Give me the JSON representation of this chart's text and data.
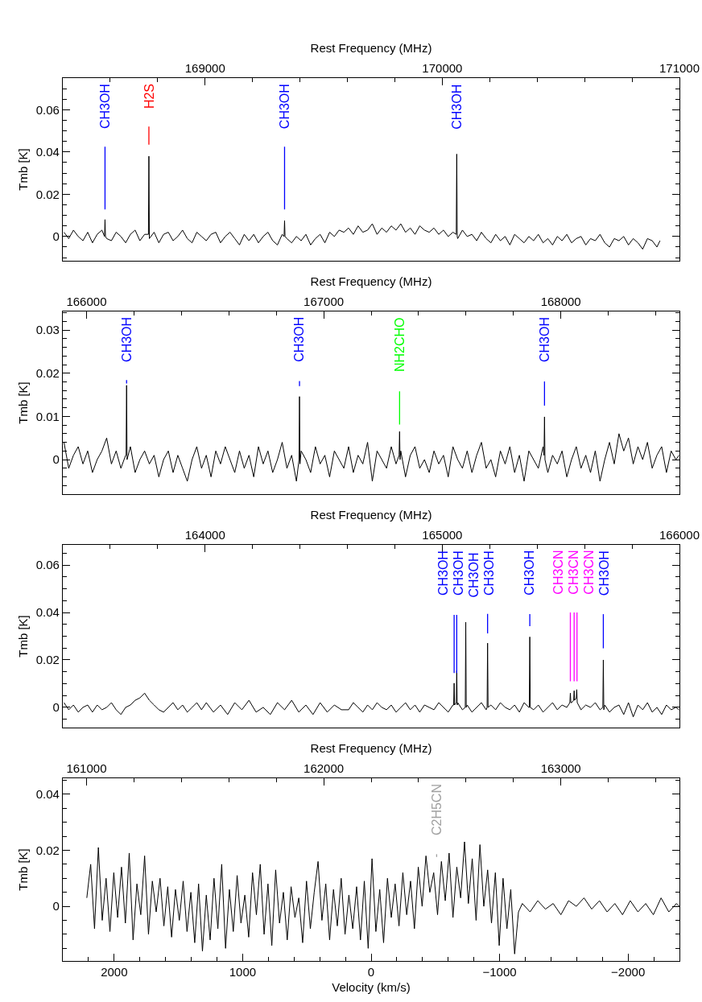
{
  "chart_data": [
    {
      "type": "line",
      "xlabel": "Rest Frequency (MHz)",
      "ylabel": "Tmb [K]",
      "xlim": [
        168400,
        171000
      ],
      "ylim": [
        -0.0115,
        0.075
      ],
      "xticks": [
        169000,
        170000,
        171000,
        {
          "value": 168600,
          "label": null
        },
        {
          "value": 168800,
          "label": null
        },
        {
          "value": 169200,
          "label": null
        },
        {
          "value": 169400,
          "label": null
        },
        {
          "value": 169600,
          "label": null
        },
        {
          "value": 169800,
          "label": null
        },
        {
          "value": 170200,
          "label": null
        },
        {
          "value": 170400,
          "label": null
        },
        {
          "value": 170600,
          "label": null
        },
        {
          "value": 170800,
          "label": null
        }
      ],
      "yticks": [
        0,
        0.02,
        0.04,
        0.06,
        {
          "value": -0.01,
          "label": null
        },
        {
          "value": -0.005,
          "label": null
        },
        {
          "value": 0.005,
          "label": null
        },
        {
          "value": 0.01,
          "label": null
        },
        {
          "value": 0.015,
          "label": null
        },
        {
          "value": 0.025,
          "label": null
        },
        {
          "value": 0.03,
          "label": null
        },
        {
          "value": 0.035,
          "label": null
        },
        {
          "value": 0.045,
          "label": null
        },
        {
          "value": 0.05,
          "label": null
        },
        {
          "value": 0.055,
          "label": null
        },
        {
          "value": 0.065,
          "label": null
        },
        {
          "value": 0.07,
          "label": null
        }
      ],
      "annotations": [
        {
          "text": "CH3OH",
          "x": 170061,
          "y": 0.039
        }
      ],
      "series": [
        {
          "color": "#000000",
          "x": [
            168405,
            168425,
            168445,
            168465,
            168485,
            168505,
            168525,
            168545,
            168565,
            168576,
            168578,
            168580,
            168585,
            168605,
            168625,
            168645,
            168665,
            168685,
            168705,
            168725,
            168745,
            168761,
            168763,
            168765,
            168785,
            168805,
            168825,
            168845,
            168865,
            168885,
            168905,
            168925,
            168945,
            168965,
            168985,
            169005,
            169025,
            169045,
            169065,
            169085,
            169105,
            169125,
            169145,
            169165,
            169185,
            169205,
            169225,
            169245,
            169265,
            169285,
            169305,
            169325,
            169333,
            169335,
            169337,
            169345,
            169365,
            169385,
            169405,
            169425,
            169445,
            169465,
            169485,
            169505,
            169525,
            169545,
            169565,
            169585,
            169605,
            169625,
            169645,
            169665,
            169685,
            169705,
            169725,
            169745,
            169765,
            169785,
            169805,
            169825,
            169845,
            169865,
            169885,
            169905,
            169925,
            169945,
            169965,
            169985,
            170005,
            170025,
            170045,
            170059,
            170061,
            170063,
            170065,
            170085,
            170105,
            170125,
            170145,
            170165,
            170185,
            170205,
            170225,
            170245,
            170265,
            170285,
            170305,
            170325,
            170345,
            170365,
            170385,
            170405,
            170425,
            170445,
            170465,
            170485,
            170505,
            170525,
            170545,
            170565,
            170585,
            170605,
            170625,
            170645,
            170665,
            170685,
            170705,
            170725,
            170745,
            170765,
            170785,
            170805,
            170825,
            170845,
            170865,
            170885,
            170905,
            170918
          ],
          "values": [
            0.002,
            -0.001,
            0.003,
            0,
            -0.002,
            0.002,
            -0.003,
            0.001,
            0.003,
            0,
            0.008,
            0,
            -0.001,
            -0.002,
            0.002,
            0,
            -0.003,
            0.001,
            0.003,
            -0.002,
            0.001,
            0.001,
            0.038,
            -0.001,
            0.002,
            -0.003,
            0.001,
            0.002,
            -0.002,
            0,
            0.003,
            -0.001,
            -0.003,
            0.002,
            0,
            -0.002,
            0.001,
            0.002,
            -0.003,
            0,
            0.002,
            -0.001,
            -0.004,
            0.001,
            -0.002,
            0.001,
            -0.003,
            0,
            0.002,
            -0.002,
            -0.004,
            0.001,
            0,
            0.0075,
            0,
            -0.001,
            -0.003,
            0,
            -0.002,
            0.001,
            -0.004,
            -0.001,
            0.001,
            -0.003,
            0.002,
            0,
            0.003,
            0.002,
            0.004,
            0.001,
            0.005,
            0.002,
            0.003,
            0.006,
            0.001,
            0.004,
            0.002,
            0.005,
            0.003,
            0.006,
            0.002,
            0.004,
            0.001,
            0.005,
            0.003,
            0.002,
            0.004,
            0.001,
            0.003,
            0,
            0.002,
            0.001,
            0.039,
            0,
            -0.001,
            0.003,
            0,
            0.001,
            -0.002,
            0.002,
            -0.001,
            -0.003,
            0.001,
            -0.002,
            0,
            -0.004,
            0.001,
            -0.001,
            -0.003,
            0,
            -0.002,
            0.001,
            -0.003,
            -0.001,
            -0.004,
            0,
            -0.002,
            0.001,
            -0.003,
            -0.001,
            0,
            -0.004,
            -0.001,
            -0.002,
            0.001,
            -0.003,
            -0.005,
            -0.001,
            -0.002,
            0,
            -0.004,
            -0.001,
            -0.003,
            -0.006,
            -0.001,
            -0.002,
            -0.005,
            -0.002
          ]
        },
        {
          "name": "CH3OH",
          "color": "#0000ff",
          "x": [
            168578,
            168578
          ],
          "values": [
            0.0128,
            0.0425
          ]
        },
        {
          "name": "H2S",
          "color": "#ff0000",
          "x": [
            168763,
            168763
          ],
          "values": [
            0.0435,
            0.052
          ]
        },
        {
          "name": "CH3OH",
          "color": "#0000ff",
          "x": [
            169335,
            169335
          ],
          "values": [
            0.0128,
            0.0425
          ]
        }
      ]
    },
    {
      "type": "line",
      "xlabel": "Rest Frequency (MHz)",
      "ylabel": "Tmb [K]",
      "xlim": [
        165900,
        168500
      ],
      "ylim": [
        -0.008,
        0.0343
      ],
      "xticks": [
        166000,
        167000,
        168000,
        {
          "value": 166200,
          "label": null
        },
        {
          "value": 166400,
          "label": null
        },
        {
          "value": 166600,
          "label": null
        },
        {
          "value": 166800,
          "label": null
        },
        {
          "value": 167200,
          "label": null
        },
        {
          "value": 167400,
          "label": null
        },
        {
          "value": 167600,
          "label": null
        },
        {
          "value": 167800,
          "label": null
        },
        {
          "value": 168200,
          "label": null
        },
        {
          "value": 168400,
          "label": null
        }
      ],
      "yticks": [
        0,
        0.01,
        0.02,
        0.03,
        {
          "value": -0.006,
          "label": null
        },
        {
          "value": -0.004,
          "label": null
        },
        {
          "value": -0.002,
          "label": null
        },
        {
          "value": 0.002,
          "label": null
        },
        {
          "value": 0.004,
          "label": null
        },
        {
          "value": 0.006,
          "label": null
        },
        {
          "value": 0.008,
          "label": null
        },
        {
          "value": 0.012,
          "label": null
        },
        {
          "value": 0.014,
          "label": null
        },
        {
          "value": 0.016,
          "label": null
        },
        {
          "value": 0.018,
          "label": null
        },
        {
          "value": 0.022,
          "label": null
        },
        {
          "value": 0.024,
          "label": null
        },
        {
          "value": 0.026,
          "label": null
        },
        {
          "value": 0.028,
          "label": null
        },
        {
          "value": 0.032,
          "label": null
        },
        {
          "value": 0.034,
          "label": null
        }
      ],
      "series": [
        {
          "color": "#000000",
          "x": [
            165905,
            165925,
            165945,
            165965,
            165985,
            166005,
            166025,
            166045,
            166065,
            166085,
            166105,
            166125,
            166145,
            166165,
            166167,
            166169,
            166171,
            166185,
            166205,
            166225,
            166245,
            166265,
            166285,
            166305,
            166325,
            166345,
            166365,
            166385,
            166405,
            166425,
            166445,
            166465,
            166485,
            166505,
            166525,
            166545,
            166565,
            166585,
            166605,
            166625,
            166645,
            166665,
            166685,
            166705,
            166725,
            166745,
            166765,
            166785,
            166805,
            166825,
            166845,
            166865,
            166885,
            166896,
            166898,
            166900,
            166905,
            166925,
            166945,
            166965,
            166985,
            167005,
            167025,
            167045,
            167065,
            167085,
            167105,
            167125,
            167145,
            167165,
            167185,
            167205,
            167225,
            167245,
            167265,
            167285,
            167305,
            167318,
            167320,
            167322,
            167325,
            167345,
            167365,
            167385,
            167405,
            167425,
            167445,
            167465,
            167485,
            167505,
            167525,
            167545,
            167565,
            167585,
            167605,
            167625,
            167645,
            167665,
            167685,
            167705,
            167725,
            167745,
            167765,
            167785,
            167805,
            167825,
            167845,
            167865,
            167885,
            167905,
            167925,
            167929,
            167931,
            167933,
            167945,
            167965,
            167985,
            168005,
            168025,
            168045,
            168065,
            168085,
            168105,
            168125,
            168145,
            168165,
            168185,
            168205,
            168225,
            168245,
            168265,
            168285,
            168305,
            168325,
            168345,
            168365,
            168385,
            168405,
            168425,
            168445,
            168465,
            168485,
            168498
          ],
          "values": [
            0.004,
            -0.002,
            0.001,
            0.003,
            -0.001,
            0.002,
            -0.003,
            0,
            0.002,
            0.005,
            -0.001,
            0.002,
            -0.002,
            0.001,
            0.001,
            0.0172,
            0,
            0.003,
            -0.003,
            0,
            0.002,
            -0.001,
            0.001,
            -0.004,
            0,
            0.002,
            -0.003,
            0.001,
            -0.002,
            -0.005,
            0,
            0.003,
            -0.002,
            0.001,
            -0.004,
            0.002,
            -0.001,
            0.003,
            0,
            -0.003,
            0.002,
            -0.002,
            0.001,
            -0.004,
            0.003,
            -0.001,
            0.002,
            -0.003,
            0,
            0.004,
            -0.002,
            0.001,
            -0.005,
            0,
            0.0146,
            -0.001,
            0.002,
            0,
            -0.003,
            0.003,
            -0.001,
            0.001,
            -0.004,
            0.002,
            0,
            -0.002,
            0.003,
            -0.003,
            0.001,
            -0.001,
            0.004,
            -0.005,
            0.002,
            0,
            -0.002,
            0.003,
            -0.001,
            0.001,
            0.0065,
            0,
            0.002,
            -0.004,
            0.001,
            0.003,
            -0.002,
            0,
            -0.003,
            0.002,
            -0.001,
            0.001,
            -0.004,
            0.003,
            0,
            -0.002,
            0.002,
            -0.003,
            0.001,
            0.004,
            -0.002,
            0,
            -0.004,
            0.002,
            -0.001,
            0.003,
            -0.003,
            0.001,
            -0.005,
            0.002,
            0,
            -0.002,
            0.003,
            0.001,
            0.0099,
            0,
            -0.003,
            0.001,
            -0.001,
            0.002,
            -0.004,
            0,
            0.003,
            -0.002,
            0.001,
            -0.003,
            0.002,
            -0.005,
            0,
            0.004,
            -0.001,
            0.006,
            0.002,
            0.005,
            -0.001,
            0.003,
            0,
            0.004,
            -0.002,
            0.001,
            0.003,
            -0.003,
            0.002,
            0,
            0.001
          ]
        },
        {
          "name": "CH3OH",
          "color": "#0000ff",
          "x": [
            166169,
            166169
          ],
          "values": [
            0.0176,
            0.0184
          ]
        },
        {
          "name": "CH3OH",
          "color": "#0000ff",
          "x": [
            166898,
            166898
          ],
          "values": [
            0.017,
            0.0182
          ]
        },
        {
          "name": "NH2CHO",
          "color": "#00ff00",
          "x": [
            167320,
            167320
          ],
          "values": [
            0.0081,
            0.0158
          ]
        },
        {
          "name": "CH3OH",
          "color": "#0000ff",
          "x": [
            167931,
            167931
          ],
          "values": [
            0.0125,
            0.0181
          ]
        }
      ]
    },
    {
      "type": "line",
      "xlabel": "Rest Frequency (MHz)",
      "ylabel": "Tmb [K]",
      "xlim": [
        163400,
        166000
      ],
      "ylim": [
        -0.0085,
        0.0685
      ],
      "xticks": [
        164000,
        165000,
        166000,
        {
          "value": 163600,
          "label": null
        },
        {
          "value": 163800,
          "label": null
        },
        {
          "value": 164200,
          "label": null
        },
        {
          "value": 164400,
          "label": null
        },
        {
          "value": 164600,
          "label": null
        },
        {
          "value": 164800,
          "label": null
        },
        {
          "value": 165200,
          "label": null
        },
        {
          "value": 165400,
          "label": null
        },
        {
          "value": 165600,
          "label": null
        },
        {
          "value": 165800,
          "label": null
        }
      ],
      "yticks": [
        0,
        0.02,
        0.04,
        0.06,
        {
          "value": -0.005,
          "label": null
        },
        {
          "value": 0.005,
          "label": null
        },
        {
          "value": 0.01,
          "label": null
        },
        {
          "value": 0.015,
          "label": null
        },
        {
          "value": 0.025,
          "label": null
        },
        {
          "value": 0.03,
          "label": null
        },
        {
          "value": 0.035,
          "label": null
        },
        {
          "value": 0.045,
          "label": null
        },
        {
          "value": 0.05,
          "label": null
        },
        {
          "value": 0.055,
          "label": null
        },
        {
          "value": 0.065,
          "label": null
        }
      ],
      "annotations": [
        {
          "text": "CH3OH",
          "x": 165099,
          "y": 0.0359
        }
      ],
      "series": [
        {
          "color": "#000000",
          "x": [
            163405,
            163425,
            163445,
            163465,
            163485,
            163505,
            163525,
            163545,
            163565,
            163585,
            163605,
            163625,
            163645,
            163665,
            163685,
            163705,
            163725,
            163745,
            163765,
            163785,
            163805,
            163825,
            163845,
            163865,
            163885,
            163905,
            163925,
            163945,
            163965,
            163985,
            164005,
            164035,
            164065,
            164095,
            164125,
            164155,
            164185,
            164215,
            164245,
            164275,
            164305,
            164335,
            164365,
            164395,
            164425,
            164455,
            164485,
            164515,
            164545,
            164575,
            164605,
            164625,
            164645,
            164665,
            164685,
            164705,
            164725,
            164745,
            164765,
            164785,
            164805,
            164825,
            164845,
            164865,
            164885,
            164905,
            164925,
            164945,
            164965,
            164985,
            165005,
            165025,
            165045,
            165048,
            165050,
            165052,
            165059,
            165061,
            165063,
            165065,
            165085,
            165097,
            165099,
            165101,
            165105,
            165125,
            165145,
            165165,
            165185,
            165189,
            165191,
            165193,
            165205,
            165225,
            165245,
            165265,
            165285,
            165305,
            165325,
            165345,
            165365,
            165367,
            165369,
            165371,
            165385,
            165405,
            165425,
            165445,
            165465,
            165485,
            165505,
            165525,
            165538,
            165540,
            165542,
            165545,
            165554,
            165556,
            165558,
            165565,
            165567,
            165569,
            165585,
            165605,
            165625,
            165645,
            165665,
            165677,
            165679,
            165681,
            165685,
            165705,
            165725,
            165745,
            165765,
            165785,
            165805,
            165825,
            165845,
            165865,
            165885,
            165905,
            165925,
            165945,
            165965,
            165985,
            165998
          ],
          "values": [
            0.002,
            -0.001,
            0.001,
            -0.002,
            0,
            0.001,
            -0.002,
            0.001,
            -0.001,
            0,
            0.002,
            -0.001,
            -0.003,
            0,
            0.001,
            0.003,
            0.004,
            0.006,
            0.003,
            0.001,
            -0.001,
            -0.002,
            0,
            0.002,
            -0.001,
            0.001,
            -0.002,
            0,
            0.002,
            -0.001,
            0.002,
            -0.002,
            0.001,
            -0.003,
            0.002,
            -0.001,
            0.003,
            -0.002,
            0,
            -0.003,
            0.002,
            -0.001,
            0.003,
            -0.002,
            0.001,
            -0.003,
            0.002,
            -0.002,
            0.001,
            -0.001,
            -0.001,
            0.002,
            0,
            -0.002,
            0.001,
            -0.001,
            0.002,
            0,
            -0.001,
            0.001,
            -0.002,
            0,
            0.002,
            -0.001,
            0.001,
            -0.002,
            0.001,
            0,
            -0.001,
            0.002,
            0,
            -0.002,
            0.001,
            0.001,
            0.0102,
            0.001,
            0.002,
            0.0155,
            0.001,
            0.002,
            -0.001,
            0,
            0.0359,
            0,
            0.001,
            -0.002,
            0,
            0.002,
            -0.001,
            0,
            0.0271,
            0,
            0.001,
            -0.001,
            0.002,
            0,
            -0.001,
            0.001,
            -0.002,
            0.002,
            0,
            0,
            0.0297,
            0,
            -0.001,
            0.001,
            -0.002,
            0,
            0.002,
            -0.001,
            0.001,
            0,
            0.002,
            0.006,
            0.002,
            0.002,
            0.003,
            0.007,
            0.003,
            0.004,
            0.0075,
            0.002,
            -0.001,
            0.001,
            0,
            0.002,
            -0.001,
            0,
            0.02,
            -0.001,
            0.001,
            -0.002,
            0,
            0.001,
            -0.003,
            0.002,
            -0.004,
            0.001,
            -0.001,
            0.002,
            -0.002,
            0,
            -0.003,
            0.001,
            -0.001,
            0,
            -0.001
          ]
        },
        {
          "name": "CH3OH",
          "color": "#0000ff",
          "x": [
            165050,
            165050
          ],
          "values": [
            0.0145,
            0.039
          ]
        },
        {
          "name": "CH3OH",
          "color": "#0000ff",
          "x": [
            165061,
            165061
          ],
          "values": [
            0.0145,
            0.039
          ]
        },
        {
          "name": "CH3OH",
          "color": "#0000ff",
          "x": [
            165191,
            165191
          ],
          "values": [
            0.0312,
            0.0394
          ]
        },
        {
          "name": "CH3OH",
          "color": "#0000ff",
          "x": [
            165369,
            165369
          ],
          "values": [
            0.0342,
            0.0393
          ]
        },
        {
          "name": "CH3CN",
          "color": "#ff00ff",
          "x": [
            165540,
            165540
          ],
          "values": [
            0.011,
            0.04
          ]
        },
        {
          "name": "CH3CN",
          "color": "#ff00ff",
          "x": [
            165556,
            165556
          ],
          "values": [
            0.011,
            0.04
          ]
        },
        {
          "name": "CH3CN",
          "color": "#ff00ff",
          "x": [
            165568,
            165568
          ],
          "values": [
            0.011,
            0.04
          ]
        },
        {
          "name": "CH3OH",
          "color": "#0000ff",
          "x": [
            165679,
            165679
          ],
          "values": [
            0.0249,
            0.0393
          ]
        }
      ]
    },
    {
      "type": "line",
      "xlabel": "Velocity (km/s)",
      "ylabel": "Tmb [K]",
      "x2label": "Rest Frequency (MHz)",
      "xlim": [
        2400,
        -2400
      ],
      "x2lim": [
        160900,
        163500
      ],
      "ylim": [
        -0.0195,
        0.0457
      ],
      "xticks": [
        2000,
        1000,
        0,
        {
          "value": -1000,
          "label": "−1000"
        },
        {
          "value": -2000,
          "label": "−2000"
        },
        {
          "value": 2200,
          "label": null
        },
        {
          "value": 1800,
          "label": null
        },
        {
          "value": 1600,
          "label": null
        },
        {
          "value": 1400,
          "label": null
        },
        {
          "value": 1200,
          "label": null
        },
        {
          "value": 800,
          "label": null
        },
        {
          "value": 600,
          "label": null
        },
        {
          "value": 400,
          "label": null
        },
        {
          "value": 200,
          "label": null
        },
        {
          "value": -200,
          "label": null
        },
        {
          "value": -400,
          "label": null
        },
        {
          "value": -600,
          "label": null
        },
        {
          "value": -800,
          "label": null
        },
        {
          "value": -1200,
          "label": null
        },
        {
          "value": -1400,
          "label": null
        },
        {
          "value": -1600,
          "label": null
        },
        {
          "value": -1800,
          "label": null
        },
        {
          "value": -2200,
          "label": null
        }
      ],
      "x2ticks": [
        161000,
        162000,
        163000,
        {
          "value": 161200,
          "label": null
        },
        {
          "value": 161400,
          "label": null
        },
        {
          "value": 161600,
          "label": null
        },
        {
          "value": 161800,
          "label": null
        },
        {
          "value": 162200,
          "label": null
        },
        {
          "value": 162400,
          "label": null
        },
        {
          "value": 162600,
          "label": null
        },
        {
          "value": 162800,
          "label": null
        },
        {
          "value": 163200,
          "label": null
        },
        {
          "value": 163400,
          "label": null
        }
      ],
      "yticks": [
        0,
        0.02,
        0.04,
        {
          "value": -0.015,
          "label": null
        },
        {
          "value": -0.01,
          "label": null
        },
        {
          "value": -0.005,
          "label": null
        },
        {
          "value": 0.005,
          "label": null
        },
        {
          "value": 0.01,
          "label": null
        },
        {
          "value": 0.015,
          "label": null
        },
        {
          "value": 0.025,
          "label": null
        },
        {
          "value": 0.03,
          "label": null
        },
        {
          "value": 0.035,
          "label": null
        },
        {
          "value": 0.045,
          "label": null
        }
      ],
      "series": [
        {
          "color": "#000000",
          "x": [
            2213,
            2183,
            2153,
            2123,
            2093,
            2063,
            2033,
            2003,
            1973,
            1943,
            1913,
            1883,
            1853,
            1823,
            1793,
            1763,
            1733,
            1703,
            1673,
            1643,
            1613,
            1583,
            1553,
            1523,
            1493,
            1463,
            1433,
            1403,
            1373,
            1343,
            1313,
            1283,
            1253,
            1223,
            1193,
            1163,
            1133,
            1103,
            1073,
            1043,
            1013,
            983,
            953,
            923,
            893,
            863,
            833,
            803,
            773,
            743,
            713,
            683,
            653,
            623,
            593,
            563,
            533,
            503,
            473,
            443,
            413,
            383,
            353,
            323,
            293,
            263,
            233,
            203,
            173,
            143,
            113,
            83,
            53,
            23,
            -7,
            -37,
            -67,
            -97,
            -127,
            -157,
            -187,
            -217,
            -247,
            -277,
            -307,
            -337,
            -367,
            -397,
            -427,
            -457,
            -487,
            -517,
            -547,
            -577,
            -607,
            -637,
            -667,
            -697,
            -727,
            -757,
            -787,
            -817,
            -847,
            -877,
            -907,
            -937,
            -967,
            -997,
            -1027,
            -1057,
            -1087,
            -1117,
            -1147,
            -1177,
            -1237,
            -1297,
            -1357,
            -1417,
            -1477,
            -1537,
            -1597,
            -1657,
            -1717,
            -1777,
            -1837,
            -1897,
            -1957,
            -2017,
            -2077,
            -2137,
            -2197,
            -2257,
            -2317,
            -2377,
            -2398
          ],
          "values": [
            0.003,
            0.015,
            -0.008,
            0.021,
            -0.005,
            0.01,
            -0.009,
            0.012,
            -0.004,
            0.014,
            -0.006,
            0.019,
            -0.012,
            0.008,
            -0.003,
            0.018,
            -0.01,
            0.009,
            -0.002,
            0.01,
            -0.007,
            0.007,
            -0.011,
            0.006,
            -0.005,
            0.009,
            -0.009,
            0.005,
            -0.013,
            0.008,
            -0.016,
            0.004,
            -0.012,
            0.01,
            -0.008,
            0.015,
            -0.015,
            0.006,
            -0.009,
            0.011,
            -0.006,
            0.004,
            -0.011,
            0.012,
            -0.003,
            0.015,
            -0.01,
            0.008,
            -0.014,
            0.013,
            -0.006,
            0.005,
            -0.012,
            0.007,
            -0.004,
            0.003,
            -0.013,
            0.009,
            -0.008,
            0.005,
            0.016,
            -0.005,
            0.008,
            -0.012,
            0.006,
            -0.007,
            0.01,
            -0.01,
            0.004,
            -0.008,
            0.007,
            -0.012,
            0.009,
            -0.015,
            0.017,
            -0.009,
            0.006,
            -0.013,
            0.01,
            -0.004,
            0.008,
            -0.007,
            0.012,
            -0.003,
            0.009,
            -0.008,
            0.014,
            0,
            0.018,
            0.005,
            0.012,
            -0.003,
            0.016,
            0.002,
            0.019,
            -0.004,
            0.014,
            0.003,
            0.023,
            0.001,
            0.017,
            -0.005,
            0.022,
            0,
            0.013,
            -0.006,
            0.012,
            -0.014,
            0.01,
            -0.008,
            0.006,
            -0.017,
            -0.002,
            0.001,
            -0.002,
            0.002,
            -0.001,
            0.001,
            -0.003,
            0.002,
            0,
            0.003,
            -0.001,
            0.002,
            -0.002,
            0.001,
            -0.003,
            0.002,
            -0.002,
            0.001,
            -0.003,
            0.003,
            -0.002,
            0.001,
            0
          ]
        },
        {
          "name": "C2H5CN",
          "color": "#a0a0a0",
          "x": [
            -510,
            -510
          ],
          "values": [
            0.0176,
            0.0186
          ]
        }
      ]
    }
  ]
}
